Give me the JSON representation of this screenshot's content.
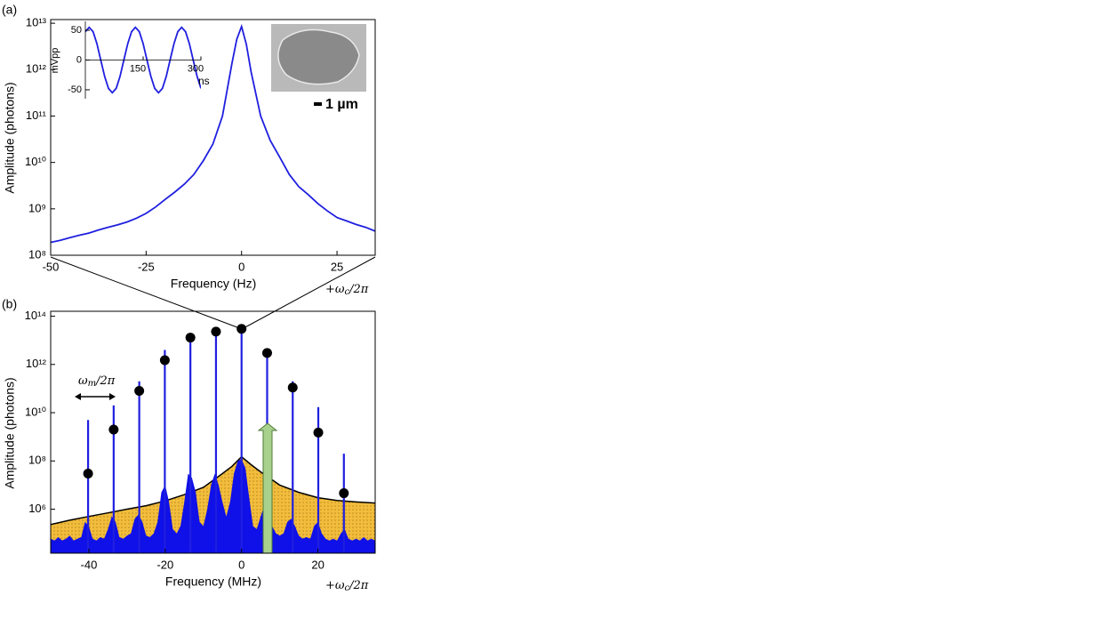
{
  "chart_data": [
    {
      "type": "line",
      "panel_label": "(a)",
      "x_label": "Frequency (Hz)",
      "y_label": "Amplitude (photons)",
      "x_annotation": [
        "+ω",
        "c",
        "/2π"
      ],
      "log_y": true,
      "xlim": [
        -50,
        35
      ],
      "ylim": [
        100000000.0,
        12000000000000.0
      ],
      "xticks": [
        -50,
        -25,
        0,
        25
      ],
      "yticks": [
        {
          "value": 100000000.0,
          "label": "10⁸"
        },
        {
          "value": 1000000000.0,
          "label": "10⁹"
        },
        {
          "value": 10000000000.0,
          "label": "10¹⁰"
        },
        {
          "value": 100000000000.0,
          "label": "10¹¹"
        },
        {
          "value": 1000000000000.0,
          "label": "10¹²"
        },
        {
          "value": 10000000000000.0,
          "label": "10¹³"
        }
      ],
      "series": [
        {
          "color": "#1f1fe0",
          "x": [
            -50,
            -47.5,
            -45,
            -42.5,
            -40,
            -37.5,
            -35,
            -32.5,
            -30,
            -27.5,
            -25,
            -22.5,
            -20,
            -17.5,
            -15,
            -12.5,
            -10,
            -7.5,
            -5,
            -2.5,
            -1.25,
            0,
            1.25,
            2.5,
            5,
            7.5,
            10,
            12.5,
            15,
            17.5,
            20,
            22.5,
            25,
            27.5,
            30,
            32.5,
            35
          ],
          "values": [
            190000000.0,
            210000000.0,
            240000000.0,
            270000000.0,
            300000000.0,
            350000000.0,
            400000000.0,
            450000000.0,
            520000000.0,
            630000000.0,
            800000000.0,
            1100000000.0,
            1600000000.0,
            2300000000.0,
            3400000000.0,
            5500000000.0,
            11000000000.0,
            25000000000.0,
            100000000000.0,
            1400000000000.0,
            4500000000000.0,
            8500000000000.0,
            3500000000000.0,
            900000000000.0,
            100000000000.0,
            30000000000.0,
            13000000000.0,
            5500000000.0,
            3000000000.0,
            2000000000.0,
            1300000000.0,
            900000000.0,
            650000000.0,
            550000000.0,
            460000000.0,
            400000000.0,
            330000000.0
          ]
        }
      ]
    },
    {
      "type": "line",
      "x_label": "ns",
      "y_label": "mVpp",
      "xlim": [
        0,
        300
      ],
      "ylim": [
        -65,
        65
      ],
      "xticks": [
        150,
        300
      ],
      "yticks": [
        50,
        0,
        -50
      ],
      "series": [
        {
          "color": "#1f1fe0",
          "x": [
            0,
            10,
            20,
            30,
            40,
            50,
            60,
            70,
            80,
            90,
            100,
            110,
            120,
            130,
            140,
            150,
            160,
            170,
            180,
            190,
            200,
            210,
            220,
            230,
            240,
            250,
            260,
            270,
            280,
            290,
            300
          ],
          "values": [
            47.6,
            55,
            47.6,
            27.5,
            0,
            -27.5,
            -47.6,
            -55,
            -47.6,
            -27.5,
            0,
            27.5,
            47.6,
            55,
            47.6,
            27.5,
            0,
            -27.5,
            -47.6,
            -55,
            -47.6,
            -27.5,
            0,
            27.5,
            47.6,
            55,
            47.6,
            27.5,
            0,
            -27.5,
            -47.6
          ]
        }
      ]
    },
    {
      "type": "stem",
      "panel_label": "(b)",
      "x_label": "Frequency (MHz)",
      "y_label": "Amplitude (photons)",
      "x_annotation": [
        "+ω",
        "c",
        "/2π"
      ],
      "spacing_annotation": [
        "ω",
        "m",
        "/2π"
      ],
      "log_y": true,
      "xlim": [
        -50,
        35
      ],
      "ylim": [
        15000.0,
        160000000000000.0
      ],
      "xticks": [
        -40,
        -20,
        0,
        20
      ],
      "yticks": [
        {
          "value": 1000000.0,
          "label": "10⁶"
        },
        {
          "value": 100000000.0,
          "label": "10⁸"
        },
        {
          "value": 10000000000.0,
          "label": "10¹⁰"
        },
        {
          "value": 1000000000000.0,
          "label": "10¹²"
        },
        {
          "value": 100000000000000.0,
          "label": "10¹⁴"
        }
      ],
      "series": [
        {
          "style": "filled-curve",
          "color": "#f2bd3c",
          "x": [
            -50,
            -45,
            -40,
            -35,
            -30,
            -25,
            -20,
            -15,
            -10,
            -5,
            -2.5,
            0,
            2.5,
            5,
            10,
            15,
            20,
            25,
            30,
            35
          ],
          "values": [
            230000.0,
            350000.0,
            500000.0,
            700000.0,
            1000000.0,
            1400000.0,
            2200000.0,
            4000000.0,
            8000000.0,
            30000000.0,
            60000000.0,
            150000000.0,
            70000000.0,
            35000000.0,
            10000000.0,
            5000000.0,
            3000000.0,
            2300000.0,
            2000000.0,
            1800000.0
          ]
        },
        {
          "style": "area",
          "color": "#1010e8",
          "x": [
            -50,
            -49,
            -48,
            -47,
            -46,
            -45,
            -44,
            -43,
            -42,
            -41,
            -40,
            -39,
            -38,
            -37,
            -36,
            -35,
            -34,
            -33,
            -32,
            -31,
            -30,
            -29,
            -28,
            -27,
            -26,
            -25,
            -24,
            -23,
            -22,
            -21,
            -20,
            -19,
            -18,
            -17,
            -16,
            -15,
            -14,
            -13,
            -12,
            -11,
            -10,
            -9,
            -8,
            -7,
            -6,
            -5,
            -4,
            -3,
            -2,
            -1,
            0,
            1,
            2,
            3,
            4,
            5,
            6,
            7,
            8,
            9,
            10,
            11,
            12,
            13,
            14,
            15,
            16,
            17,
            18,
            19,
            20,
            21,
            22,
            23,
            24,
            25,
            26,
            27,
            28,
            29,
            30,
            31,
            32,
            33,
            34,
            35
          ],
          "values": [
            60000.0,
            50000.0,
            70000.0,
            50000.0,
            60000.0,
            80000.0,
            50000.0,
            60000.0,
            70000.0,
            300000.0,
            200000.0,
            60000.0,
            50000.0,
            70000.0,
            60000.0,
            150000.0,
            500000.0,
            300000.0,
            70000.0,
            60000.0,
            80000.0,
            100000.0,
            400000.0,
            600000.0,
            300000.0,
            80000.0,
            70000.0,
            100000.0,
            300000.0,
            5000000.0,
            10000000.0,
            2000000.0,
            150000.0,
            100000.0,
            200000.0,
            2000000.0,
            30000000.0,
            20000000.0,
            5000000.0,
            300000.0,
            200000.0,
            1000000.0,
            10000000.0,
            30000000.0,
            10000000.0,
            2000000.0,
            500000.0,
            2000000.0,
            30000000.0,
            100000000.0,
            120000000.0,
            50000000.0,
            3000000.0,
            200000.0,
            150000.0,
            500000.0,
            1500000.0,
            800000.0,
            200000.0,
            100000.0,
            80000.0,
            100000.0,
            300000.0,
            400000.0,
            200000.0,
            80000.0,
            60000.0,
            70000.0,
            60000.0,
            200000.0,
            300000.0,
            100000.0,
            60000.0,
            50000.0,
            60000.0,
            50000.0,
            100000.0,
            150000.0,
            60000.0,
            50000.0,
            60000.0,
            50000.0,
            70000.0,
            50000.0,
            60000.0,
            50000.0
          ]
        },
        {
          "style": "stems",
          "color": "#1f1fe0",
          "x": [
            -40.2,
            -33.5,
            -26.8,
            -20.1,
            -13.4,
            -6.7,
            0,
            6.7,
            13.4,
            20.1,
            26.8
          ],
          "values": [
            5000000000.0,
            20000000000.0,
            200000000000.0,
            4000000000000.0,
            20000000000000.0,
            30000000000000.0,
            35000000000000.0,
            3000000000000.0,
            200000000000.0,
            17000000000.0,
            200000000.0
          ]
        },
        {
          "style": "dots",
          "color": "#000000",
          "x": [
            -40.2,
            -33.5,
            -26.8,
            -20.1,
            -13.4,
            -6.7,
            0,
            6.7,
            13.4,
            20.1,
            26.8
          ],
          "values": [
            30000000.0,
            2000000000.0,
            80000000000.0,
            1500000000000.0,
            13000000000000.0,
            23000000000000.0,
            30000000000000.0,
            3000000000000.0,
            110000000000.0,
            1500000000.0,
            4600000.0
          ]
        }
      ]
    }
  ],
  "image_inset": {
    "scale_label": "1 µm"
  }
}
